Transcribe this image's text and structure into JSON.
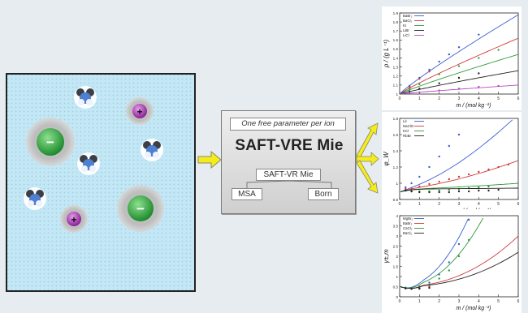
{
  "colors": {
    "background": "#e7ecf0",
    "solution": "#bfe6f4",
    "arrow": "#f4ec1b",
    "anion": "#2aa33b",
    "cation": "#9b2ea6",
    "solvent_core": "#4e7fd3"
  },
  "icons": {
    "anion_symbol": "−",
    "cation_symbol": "+"
  },
  "model": {
    "note": "One free parameter per ion",
    "title": "SAFT-VRE Mie",
    "subtitle": "SAFT-VR Mie",
    "msa": "MSA",
    "born": "Born"
  },
  "chart_data": [
    {
      "type": "scatter",
      "ylabel": "ρ / (g L⁻¹)",
      "xlabel": "m / (mol kg⁻¹)",
      "xlim": [
        0,
        6
      ],
      "ylim": [
        1.0,
        1.9
      ],
      "xticks": [
        "0",
        "1",
        "2",
        "3",
        "4",
        "5",
        "6"
      ],
      "yticks": [
        "1",
        "1.1",
        "1.2",
        "1.3",
        "1.4",
        "1.5",
        "1.6",
        "1.7",
        "1.8",
        "1.9"
      ],
      "series": [
        {
          "name": "BaBr₂",
          "color": "#3a5fd0",
          "x": [
            0.5,
            1,
            1.5,
            2,
            2.5,
            3,
            4
          ],
          "y": [
            1.09,
            1.18,
            1.27,
            1.36,
            1.44,
            1.52,
            1.66
          ],
          "fit_end": 1.88
        },
        {
          "name": "BaCl₂",
          "color": "#cf3a3a",
          "x": [
            0.5,
            1,
            1.5
          ],
          "y": [
            1.08,
            1.17,
            1.25
          ],
          "fit_end": 1.62
        },
        {
          "name": "KI",
          "color": "#2e9a3b",
          "x": [
            0.5,
            1,
            2,
            3,
            4,
            5
          ],
          "y": [
            1.06,
            1.11,
            1.22,
            1.31,
            1.4,
            1.49
          ],
          "fit_end": 1.44
        },
        {
          "name": "LiBr",
          "color": "#222222",
          "x": [
            0.5,
            1,
            2,
            3,
            4
          ],
          "y": [
            1.03,
            1.06,
            1.12,
            1.18,
            1.23
          ],
          "fit_end": 1.26
        },
        {
          "name": "LiCl",
          "color": "#b646c4",
          "x": [
            0.5,
            1,
            2,
            3,
            4,
            5
          ],
          "y": [
            1.01,
            1.02,
            1.04,
            1.06,
            1.08,
            1.09
          ],
          "fit_end": 1.1
        }
      ]
    },
    {
      "type": "scatter",
      "ylabel": "φ_W",
      "xlabel": "m / (mol kg⁻¹)",
      "xlim": [
        0,
        6
      ],
      "ylim": [
        0.8,
        1.8
      ],
      "xticks": [
        "0",
        "1",
        "2",
        "3",
        "4",
        "5",
        "6"
      ],
      "yticks": [
        "0.8",
        "1",
        "1.2",
        "1.4",
        "1.6",
        "1.8"
      ],
      "series": [
        {
          "name": "LiI",
          "color": "#3a5fd0",
          "x": [
            0.3,
            0.6,
            1,
            1.5,
            2,
            2.5,
            3
          ],
          "y": [
            0.95,
            1.0,
            1.08,
            1.2,
            1.33,
            1.46,
            1.6
          ],
          "fit_end": 1.85
        },
        {
          "name": "NaClO",
          "color": "#cf3a3a",
          "x": [
            0.3,
            0.6,
            1,
            1.5,
            2,
            2.5,
            3,
            3.5,
            4,
            4.5,
            5,
            5.5
          ],
          "y": [
            0.93,
            0.94,
            0.96,
            0.99,
            1.02,
            1.05,
            1.08,
            1.11,
            1.14,
            1.17,
            1.2,
            1.23
          ],
          "fit_end": 1.28
        },
        {
          "name": "KCl",
          "color": "#2e9a3b",
          "x": [
            0.3,
            0.6,
            1,
            1.5,
            2,
            2.5,
            3,
            3.5,
            4,
            4.5
          ],
          "y": [
            0.91,
            0.9,
            0.9,
            0.9,
            0.91,
            0.92,
            0.93,
            0.94,
            0.95,
            0.96
          ],
          "fit_end": 1.0
        },
        {
          "name": "RbBr",
          "color": "#222222",
          "x": [
            0.3,
            0.6,
            1,
            1.5,
            2,
            2.5,
            3,
            3.5,
            4,
            4.5,
            5
          ],
          "y": [
            0.91,
            0.9,
            0.89,
            0.89,
            0.89,
            0.89,
            0.9,
            0.9,
            0.91,
            0.91,
            0.92
          ],
          "fit_end": 0.94
        }
      ]
    },
    {
      "type": "scatter",
      "ylabel": "γ±,m",
      "xlabel": "m / (mol kg⁻¹)",
      "xlim": [
        0,
        6
      ],
      "ylim": [
        0,
        4
      ],
      "xticks": [
        "0",
        "1",
        "2",
        "3",
        "4",
        "5",
        "6"
      ],
      "yticks": [
        "0",
        "0.5",
        "1",
        "1.5",
        "2",
        "2.5",
        "3",
        "3.5",
        "4"
      ],
      "series": [
        {
          "name": "MgBr₂",
          "color": "#3a5fd0",
          "x": [
            0.3,
            0.6,
            1,
            1.5,
            2,
            2.5,
            3,
            3.5
          ],
          "y": [
            0.45,
            0.42,
            0.5,
            0.7,
            1.1,
            1.7,
            2.6,
            3.8
          ],
          "fit_end": 4.0
        },
        {
          "name": "BaBr₂",
          "color": "#cf3a3a",
          "x": [
            0.3,
            0.6,
            1,
            1.5
          ],
          "y": [
            0.42,
            0.4,
            0.42,
            0.5
          ],
          "fit_end": 3.0
        },
        {
          "name": "CaCl₂",
          "color": "#2e9a3b",
          "x": [
            0.3,
            0.6,
            1,
            1.5,
            2,
            2.5,
            3,
            3.5
          ],
          "y": [
            0.43,
            0.4,
            0.44,
            0.6,
            0.9,
            1.3,
            2.0,
            2.8
          ],
          "fit_end": 4.0
        },
        {
          "name": "BaCl₂",
          "color": "#222222",
          "x": [
            0.3,
            0.6,
            1,
            1.5
          ],
          "y": [
            0.41,
            0.39,
            0.4,
            0.44
          ],
          "fit_end": 2.2
        }
      ]
    }
  ]
}
